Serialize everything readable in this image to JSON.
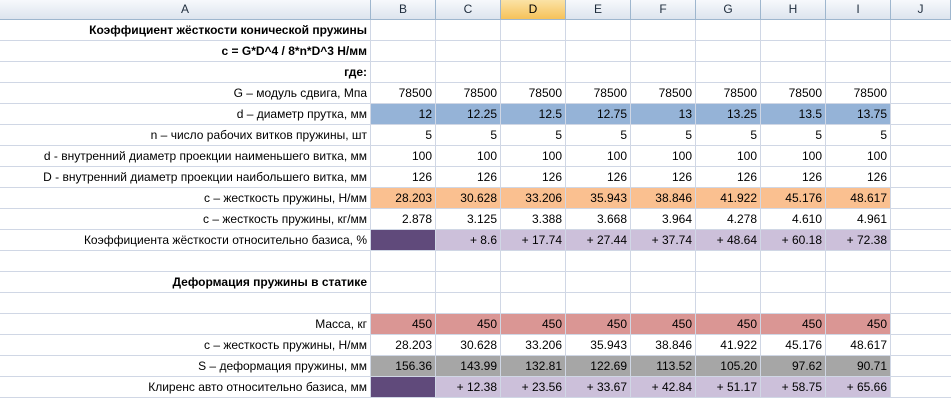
{
  "columns": [
    "A",
    "B",
    "C",
    "D",
    "E",
    "F",
    "G",
    "H",
    "I",
    "J"
  ],
  "selected_column": "D",
  "colors": {
    "blue": "#95b3d7",
    "orange": "#fac090",
    "lavender": "#ccc0da",
    "dark_purple": "#604a7b",
    "rose": "#da9694",
    "gray": "#a6a6a6"
  },
  "rows": [
    {
      "label": "Коэффициент жёсткости конической пружины",
      "bold": true,
      "values": []
    },
    {
      "label": "c = G*D^4 / 8*n*D^3 Н/мм",
      "bold": true,
      "values": []
    },
    {
      "label": "где:",
      "bold": true,
      "values": []
    },
    {
      "label": "G – модуль сдвига, Мпа",
      "values": [
        "78500",
        "78500",
        "78500",
        "78500",
        "78500",
        "78500",
        "78500",
        "78500"
      ]
    },
    {
      "label": "d – диаметр прутка, мм",
      "fill": "blue",
      "values": [
        "12",
        "12.25",
        "12.5",
        "12.75",
        "13",
        "13.25",
        "13.5",
        "13.75"
      ]
    },
    {
      "label": "n – число рабочих витков пружины, шт",
      "values": [
        "5",
        "5",
        "5",
        "5",
        "5",
        "5",
        "5",
        "5"
      ]
    },
    {
      "label": "d -  внутренний диаметр проекции наименьшего витка, мм",
      "values": [
        "100",
        "100",
        "100",
        "100",
        "100",
        "100",
        "100",
        "100"
      ]
    },
    {
      "label": "D -  внутренний диаметр проекции наибольшего витка, мм",
      "values": [
        "126",
        "126",
        "126",
        "126",
        "126",
        "126",
        "126",
        "126"
      ]
    },
    {
      "label": "c – жесткость пружины, Н/мм",
      "fill": "orange",
      "values": [
        "28.203",
        "30.628",
        "33.206",
        "35.943",
        "38.846",
        "41.922",
        "45.176",
        "48.617"
      ]
    },
    {
      "label": "c – жесткость пружины, кг/мм",
      "values": [
        "2.878",
        "3.125",
        "3.388",
        "3.668",
        "3.964",
        "4.278",
        "4.610",
        "4.961"
      ]
    },
    {
      "label": "Коэффициента жёсткости относительно базиса, %",
      "fill": "lavender",
      "first_fill": "dark_purple",
      "values": [
        "",
        "+ 8.6",
        "+ 17.74",
        "+ 27.44",
        "+ 37.74",
        "+ 48.64",
        "+ 60.18",
        "+ 72.38"
      ]
    },
    {
      "label": "",
      "values": []
    },
    {
      "label": "Деформация пружины в статике",
      "bold": true,
      "values": []
    },
    {
      "label": "",
      "values": []
    },
    {
      "label": "Масса, кг",
      "fill": "rose",
      "values": [
        "450",
        "450",
        "450",
        "450",
        "450",
        "450",
        "450",
        "450"
      ]
    },
    {
      "label": "c – жесткость пружины, Н/мм",
      "values": [
        "28.203",
        "30.628",
        "33.206",
        "35.943",
        "38.846",
        "41.922",
        "45.176",
        "48.617"
      ]
    },
    {
      "label": "S – деформация пружины, мм",
      "fill": "gray",
      "values": [
        "156.36",
        "143.99",
        "132.81",
        "122.69",
        "113.52",
        "105.20",
        "97.62",
        "90.71"
      ]
    },
    {
      "label": "Клиренс авто относительно базиса, мм",
      "fill": "lavender",
      "first_fill": "dark_purple",
      "values": [
        "",
        "+ 12.38",
        "+ 23.56",
        "+ 33.67",
        "+ 42.84",
        "+ 51.17",
        "+ 58.75",
        "+ 65.66"
      ]
    }
  ]
}
